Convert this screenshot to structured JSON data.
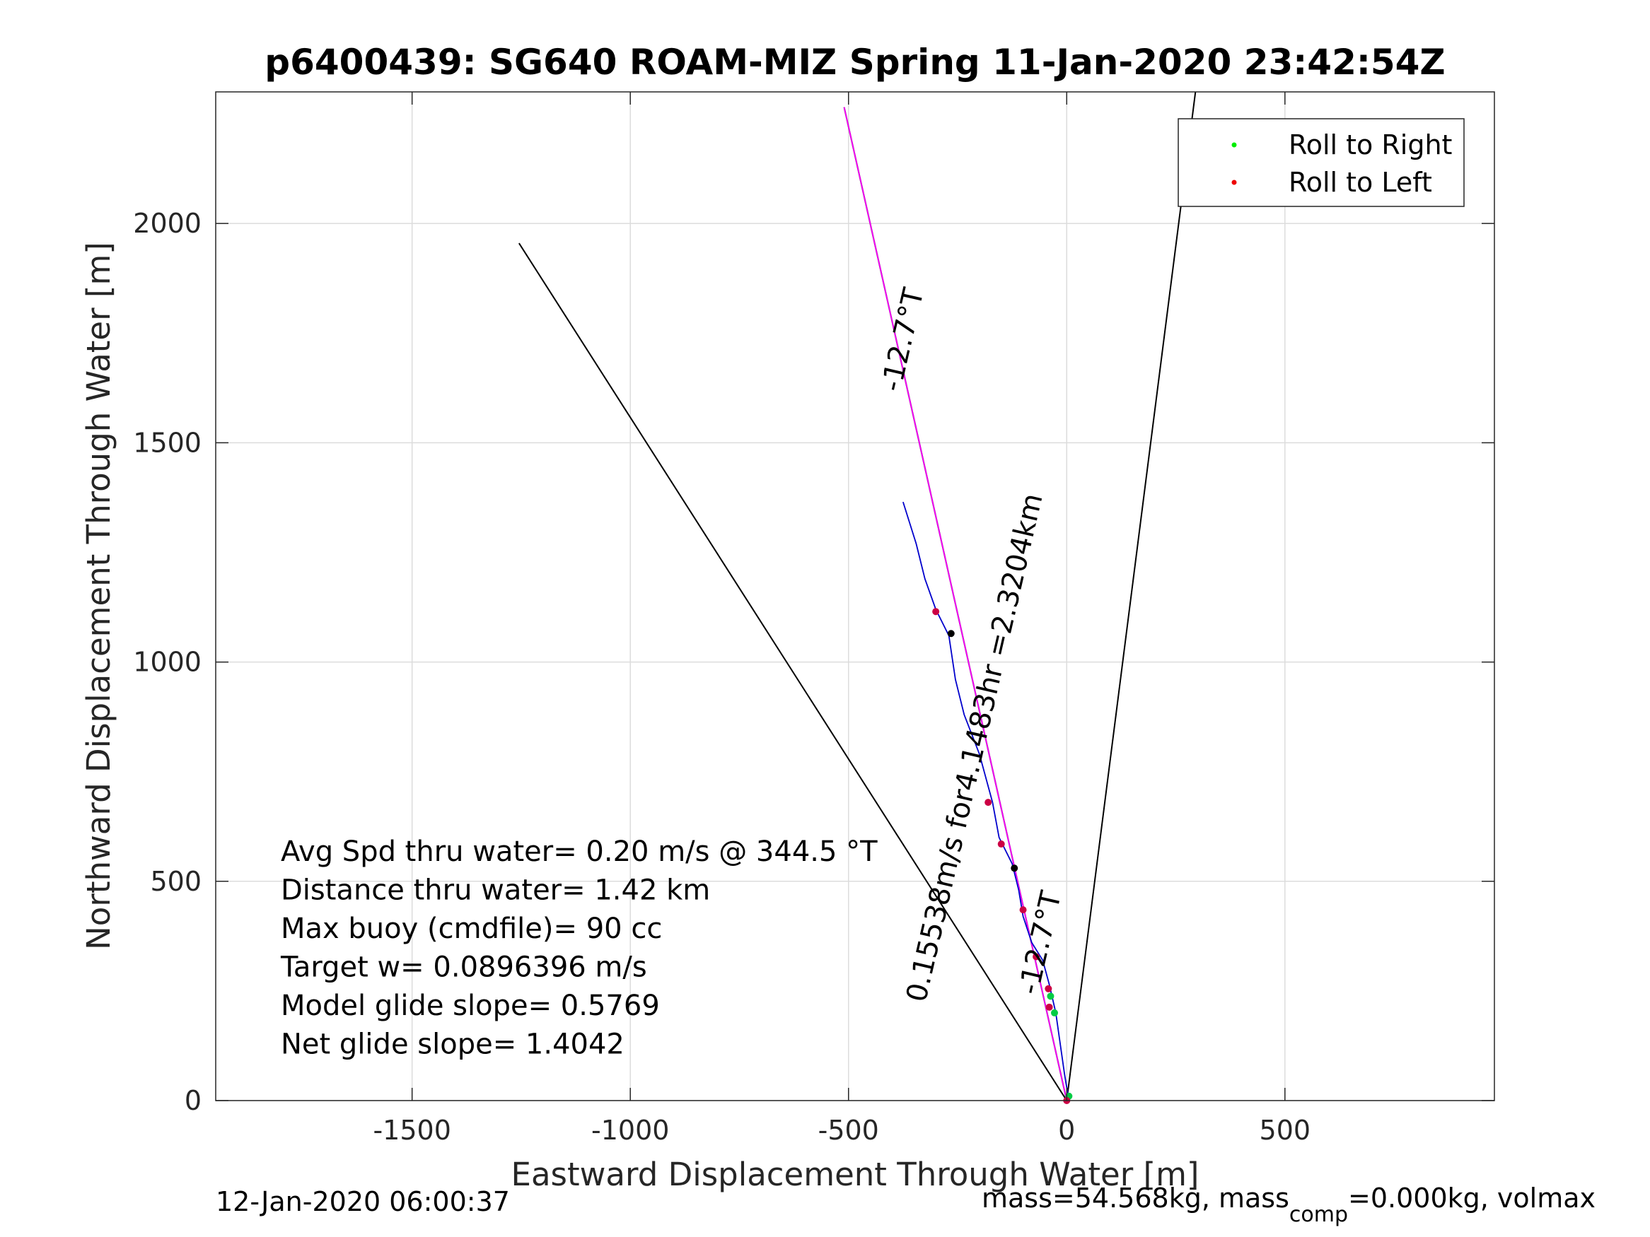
{
  "chart_data": {
    "type": "line",
    "title": "p6400439: SG640 ROAM-MIZ Spring 11-Jan-2020 23:42:54Z",
    "xlabel": "Eastward Displacement Through Water [m]",
    "ylabel": "Northward Displacement Through Water [m]",
    "xlim": [
      -1950,
      980
    ],
    "ylim": [
      0,
      2300
    ],
    "xticks": [
      -1500,
      -1000,
      -500,
      0,
      500
    ],
    "xtick_labels": [
      "-1500",
      "-1000",
      "-500",
      "0",
      "500"
    ],
    "yticks": [
      0,
      500,
      1000,
      1500,
      2000
    ],
    "ytick_labels": [
      "0",
      "500",
      "1000",
      "1500",
      "2000"
    ],
    "grid": true,
    "legend": {
      "placement": "top-right",
      "entries": [
        {
          "label": "Roll to Right",
          "color": "#00ee00"
        },
        {
          "label": "Roll to Left",
          "color": "#ee0000"
        }
      ]
    },
    "reference_lines": [
      {
        "id": "model-glide-line",
        "color": "#000000",
        "points": [
          [
            0,
            0
          ],
          [
            -1255,
            1955
          ]
        ]
      },
      {
        "id": "heading-line",
        "color": "#000000",
        "points": [
          [
            0,
            0
          ],
          [
            -510,
            2265
          ]
        ]
      },
      {
        "id": "north-bound-line",
        "color": "#000000",
        "points": [
          [
            0,
            0
          ],
          [
            295,
            2300
          ]
        ]
      },
      {
        "id": "net-track-line",
        "color": "#ff00ff",
        "points": [
          [
            0,
            0
          ],
          [
            -510,
            2265
          ]
        ]
      }
    ],
    "track": {
      "color": "#0000cc",
      "points": [
        [
          5,
          0
        ],
        [
          -5,
          60
        ],
        [
          -15,
          130
        ],
        [
          -25,
          200
        ],
        [
          -40,
          265
        ],
        [
          -55,
          320
        ],
        [
          -80,
          360
        ],
        [
          -100,
          420
        ],
        [
          -110,
          480
        ],
        [
          -125,
          540
        ],
        [
          -155,
          600
        ],
        [
          -170,
          680
        ],
        [
          -200,
          790
        ],
        [
          -235,
          880
        ],
        [
          -255,
          960
        ],
        [
          -270,
          1060
        ],
        [
          -300,
          1120
        ],
        [
          -325,
          1190
        ],
        [
          -345,
          1270
        ],
        [
          -375,
          1365
        ]
      ]
    },
    "roll_right_points": [
      [
        -28,
        200
      ],
      [
        -37,
        238
      ],
      [
        5,
        10
      ]
    ],
    "roll_left_points": [
      [
        -40,
        213
      ],
      [
        -42,
        255
      ],
      [
        -70,
        328
      ],
      [
        -100,
        435
      ],
      [
        -150,
        585
      ],
      [
        -180,
        680
      ],
      [
        -300,
        1115
      ],
      [
        0,
        0
      ]
    ],
    "marker_points": [
      [
        -120,
        530
      ],
      [
        -265,
        1065
      ]
    ],
    "annotations": [
      {
        "text": "-12.7°T",
        "at": [
          -355,
          1730
        ],
        "angle": -77
      },
      {
        "text": "0.15538m/s for4.1483hr =2.3204km",
        "at": [
          -190,
          800
        ],
        "angle": -77
      },
      {
        "text": "-12.7°T",
        "at": [
          -40,
          355
        ],
        "angle": -77
      }
    ],
    "stats_text": [
      "Avg Spd thru water=  0.20 m/s @ 344.5 °T",
      "Distance thru water=  1.42 km",
      "Max buoy (cmdfile)= 90 cc",
      "Target w= 0.0896396 m/s",
      "Model glide slope= 0.5769",
      "Net glide slope= 1.4042"
    ]
  },
  "footer": {
    "left": "12-Jan-2020 06:00:37",
    "right_prefix": "mass=54.568kg, mass",
    "right_sub": "comp",
    "right_suffix": "=0.000kg, volmax"
  }
}
